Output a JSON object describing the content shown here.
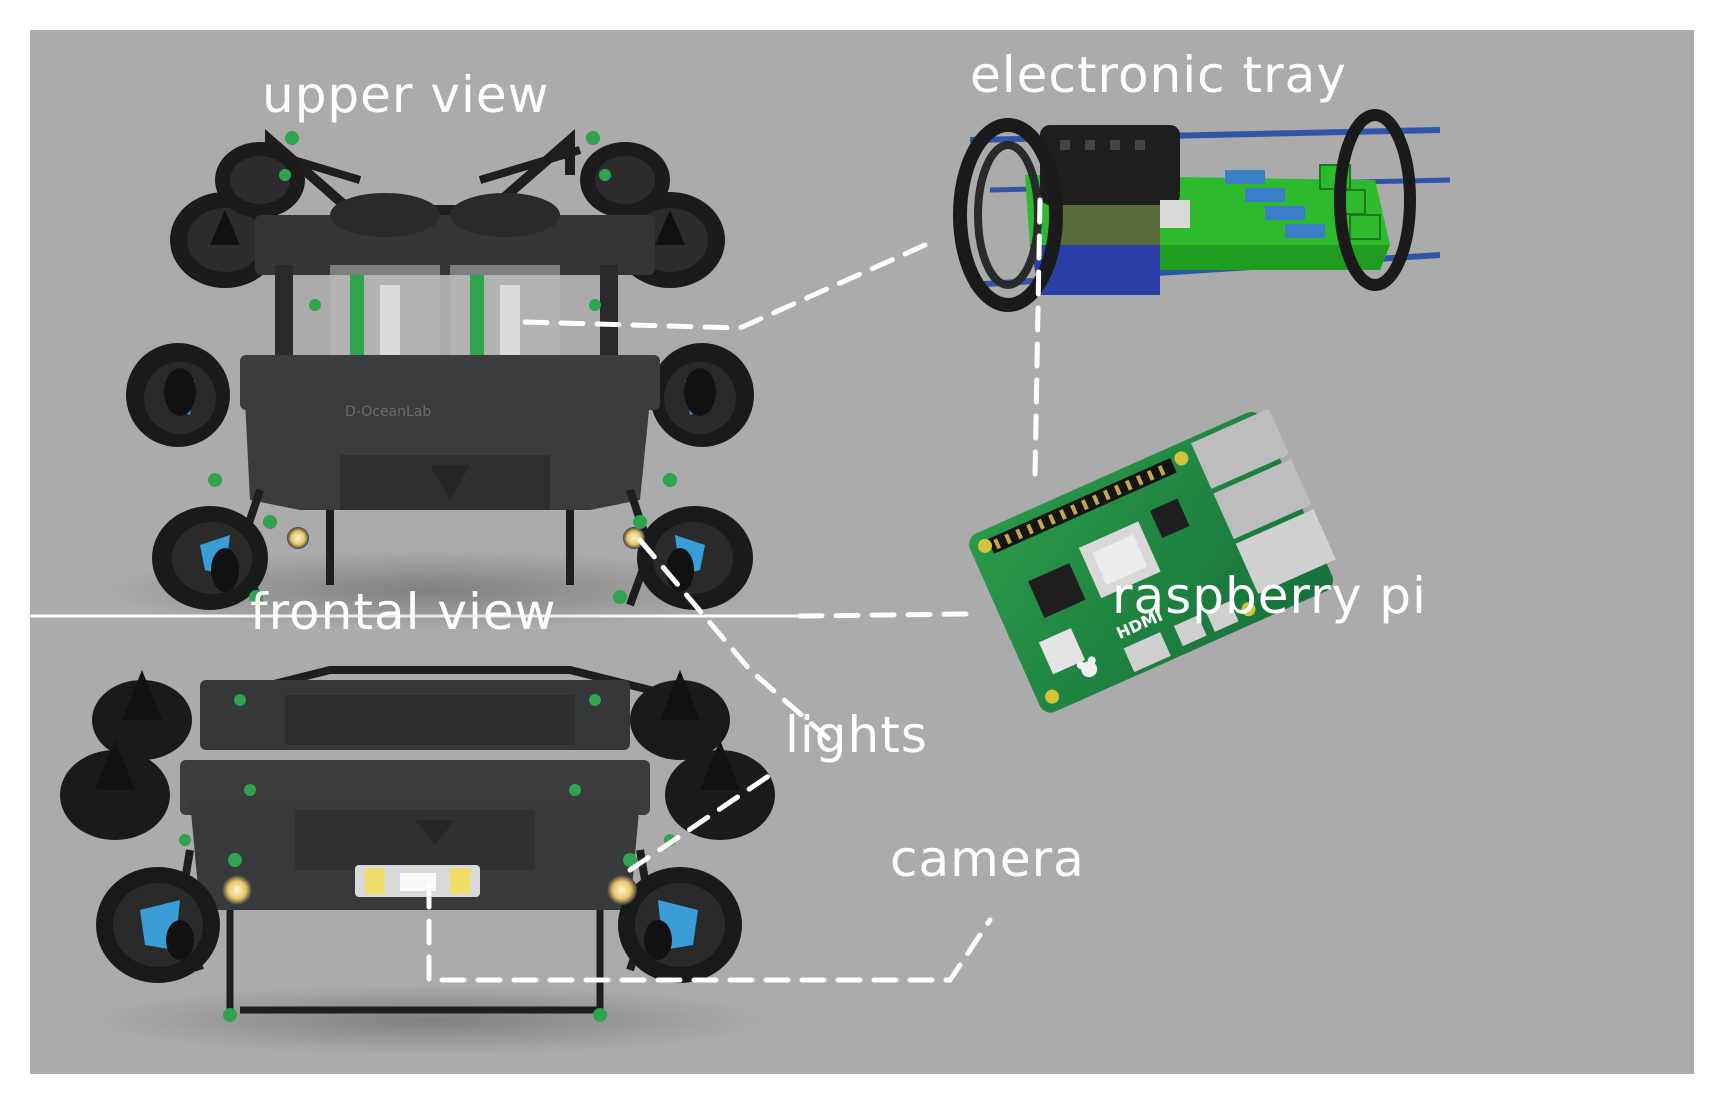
{
  "labels": {
    "upper_view": "upper view",
    "electronic_tray": "electronic tray",
    "frontal_view": "frontal view",
    "raspberry_pi": "raspberry pi",
    "lights": "lights",
    "camera": "camera"
  },
  "robot": {
    "brand_text": "D-OceanLab"
  },
  "board": {
    "hdmi_text": "HDMI"
  },
  "colors": {
    "background": "#ababab",
    "annotation": "#ffffff",
    "frame": "#2f3032",
    "connector_green": "#2fa34d",
    "thruster_blue": "#3a9ed6",
    "pcb_green": "#1f8a3c",
    "tray_green": "#2dbb2d",
    "rod_blue": "#2e55a8"
  },
  "icons": {
    "thruster": "thruster-icon",
    "light": "light-icon",
    "camera": "camera-icon",
    "board": "raspberry-pi-board-icon",
    "tray": "electronic-tray-icon"
  }
}
